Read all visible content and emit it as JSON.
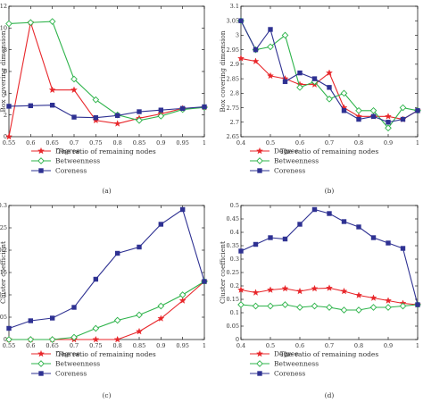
{
  "figure": {
    "panel_labels": [
      "(a)",
      "(b)",
      "(c)",
      "(d)"
    ]
  },
  "chart_data": [
    {
      "type": "line",
      "panel": "(a)",
      "xlabel": "The ratio of remaining nodes",
      "ylabel": "Box covering dimension",
      "xlim": [
        0.55,
        1
      ],
      "ylim": [
        0,
        12
      ],
      "xticks": [
        0.55,
        0.6,
        0.65,
        0.7,
        0.75,
        0.8,
        0.85,
        0.9,
        0.95,
        1
      ],
      "xtick_labels": [
        "0.55",
        "0.6",
        "0.65",
        "0.7",
        "0.75",
        "0.8",
        "0.85",
        "0.9",
        "0.95",
        "1"
      ],
      "yticks": [
        0,
        2,
        4,
        6,
        8,
        10,
        12
      ],
      "ytick_labels": [
        "0",
        "2",
        "4",
        "6",
        "8",
        "10",
        "12"
      ],
      "grid": false,
      "x": [
        0.55,
        0.6,
        0.65,
        0.7,
        0.75,
        0.8,
        0.85,
        0.9,
        0.95,
        1
      ],
      "series": [
        {
          "name": "Degree",
          "color": "#e8262a",
          "marker": "star",
          "values": [
            0,
            10.5,
            4.3,
            4.3,
            1.5,
            1.2,
            1.7,
            2.1,
            2.6,
            2.7
          ]
        },
        {
          "name": "Betweenness",
          "color": "#2db34a",
          "marker": "diamond",
          "values": [
            10.4,
            10.5,
            10.6,
            5.3,
            3.4,
            2.0,
            1.5,
            1.9,
            2.5,
            2.7
          ]
        },
        {
          "name": "Coreness",
          "color": "#2e3192",
          "marker": "square",
          "values": [
            2.8,
            2.85,
            2.9,
            1.8,
            1.75,
            1.95,
            2.3,
            2.45,
            2.6,
            2.75
          ]
        }
      ],
      "legend": {
        "placement": "below",
        "entries": [
          "Degree",
          "Betweenness",
          "Coreness"
        ]
      }
    },
    {
      "type": "line",
      "panel": "(b)",
      "xlabel": "The ratio of remaining nodes",
      "ylabel": "Box covering dimension",
      "xlim": [
        0.4,
        1
      ],
      "ylim": [
        2.65,
        3.1
      ],
      "xticks": [
        0.4,
        0.5,
        0.6,
        0.7,
        0.8,
        0.9,
        1
      ],
      "xtick_labels": [
        "0.4",
        "0.5",
        "0.6",
        "0.7",
        "0.8",
        "0.9",
        "1"
      ],
      "yticks": [
        2.65,
        2.7,
        2.75,
        2.8,
        2.85,
        2.9,
        2.95,
        3,
        3.05,
        3.1
      ],
      "ytick_labels": [
        "2.65",
        "2.7",
        "2.75",
        "2.8",
        "2.85",
        "2.9",
        "2.95",
        "3",
        "3.05",
        "3.1"
      ],
      "grid": false,
      "x": [
        0.4,
        0.45,
        0.5,
        0.55,
        0.6,
        0.65,
        0.7,
        0.75,
        0.8,
        0.85,
        0.9,
        0.95,
        1
      ],
      "series": [
        {
          "name": "Degree",
          "color": "#e8262a",
          "marker": "star",
          "values": [
            2.92,
            2.91,
            2.86,
            2.85,
            2.83,
            2.83,
            2.87,
            2.75,
            2.72,
            2.72,
            2.72,
            2.71,
            2.74
          ]
        },
        {
          "name": "Betweenness",
          "color": "#2db34a",
          "marker": "diamond",
          "values": [
            3.05,
            2.95,
            2.96,
            3.0,
            2.82,
            2.84,
            2.78,
            2.8,
            2.74,
            2.74,
            2.68,
            2.75,
            2.74
          ]
        },
        {
          "name": "Coreness",
          "color": "#2e3192",
          "marker": "square",
          "values": [
            3.05,
            2.95,
            3.02,
            2.84,
            2.87,
            2.85,
            2.82,
            2.74,
            2.71,
            2.72,
            2.7,
            2.71,
            2.74
          ]
        }
      ],
      "legend": {
        "placement": "below",
        "entries": [
          "Degree",
          "Betweenness",
          "Coreness"
        ]
      }
    },
    {
      "type": "line",
      "panel": "(c)",
      "xlabel": "The ratio of remaining nodes",
      "ylabel": "Cluster coefficient",
      "xlim": [
        0.55,
        1
      ],
      "ylim": [
        0,
        0.3
      ],
      "xticks": [
        0.55,
        0.6,
        0.65,
        0.7,
        0.75,
        0.8,
        0.85,
        0.9,
        0.95,
        1
      ],
      "xtick_labels": [
        "0.55",
        "0.6",
        "0.65",
        "0.7",
        "0.75",
        "0.8",
        "0.85",
        "0.9",
        "0.95",
        "1"
      ],
      "yticks": [
        0,
        0.05,
        0.1,
        0.15,
        0.2,
        0.25,
        0.3
      ],
      "ytick_labels": [
        "0",
        "0.05",
        "0.1",
        "0.15",
        "0.2",
        "0.25",
        "0.3"
      ],
      "grid": false,
      "x": [
        0.55,
        0.6,
        0.65,
        0.7,
        0.75,
        0.8,
        0.85,
        0.9,
        0.95,
        1
      ],
      "series": [
        {
          "name": "Degree",
          "color": "#e8262a",
          "marker": "star",
          "values": [
            0,
            0,
            0,
            0,
            0,
            0,
            0.018,
            0.047,
            0.087,
            0.13
          ]
        },
        {
          "name": "Betweenness",
          "color": "#2db34a",
          "marker": "diamond",
          "values": [
            0,
            0,
            0,
            0.005,
            0.025,
            0.043,
            0.055,
            0.075,
            0.1,
            0.13
          ]
        },
        {
          "name": "Coreness",
          "color": "#2e3192",
          "marker": "square",
          "values": [
            0.025,
            0.042,
            0.048,
            0.072,
            0.135,
            0.193,
            0.207,
            0.258,
            0.291,
            0.13
          ]
        }
      ],
      "legend": {
        "placement": "below",
        "entries": [
          "Degree",
          "Betweenness",
          "Coreness"
        ]
      }
    },
    {
      "type": "line",
      "panel": "(d)",
      "xlabel": "The ratio of remaining nodes",
      "ylabel": "Cluster coefficient",
      "xlim": [
        0.4,
        1
      ],
      "ylim": [
        0,
        0.5
      ],
      "xticks": [
        0.4,
        0.5,
        0.6,
        0.7,
        0.8,
        0.9,
        1
      ],
      "xtick_labels": [
        "0.4",
        "0.5",
        "0.6",
        "0.7",
        "0.8",
        "0.9",
        "1"
      ],
      "yticks": [
        0,
        0.05,
        0.1,
        0.15,
        0.2,
        0.25,
        0.3,
        0.35,
        0.4,
        0.45,
        0.5
      ],
      "ytick_labels": [
        "0",
        "0.05",
        "0.1",
        "0.15",
        "0.2",
        "0.25",
        "0.3",
        "0.35",
        "0.4",
        "0.45",
        "0.5"
      ],
      "grid": false,
      "x": [
        0.4,
        0.45,
        0.5,
        0.55,
        0.6,
        0.65,
        0.7,
        0.75,
        0.8,
        0.85,
        0.9,
        0.95,
        1
      ],
      "series": [
        {
          "name": "Degree",
          "color": "#e8262a",
          "marker": "star",
          "values": [
            0.185,
            0.175,
            0.185,
            0.19,
            0.18,
            0.19,
            0.192,
            0.18,
            0.165,
            0.155,
            0.145,
            0.135,
            0.13
          ]
        },
        {
          "name": "Betweenness",
          "color": "#2db34a",
          "marker": "diamond",
          "values": [
            0.13,
            0.125,
            0.125,
            0.13,
            0.12,
            0.125,
            0.12,
            0.11,
            0.11,
            0.12,
            0.12,
            0.125,
            0.13
          ]
        },
        {
          "name": "Coreness",
          "color": "#2e3192",
          "marker": "square",
          "values": [
            0.33,
            0.355,
            0.38,
            0.375,
            0.43,
            0.485,
            0.47,
            0.44,
            0.42,
            0.38,
            0.36,
            0.34,
            0.13
          ]
        }
      ],
      "legend": {
        "placement": "below",
        "entries": [
          "Degree",
          "Betweenness",
          "Coreness"
        ]
      }
    }
  ]
}
